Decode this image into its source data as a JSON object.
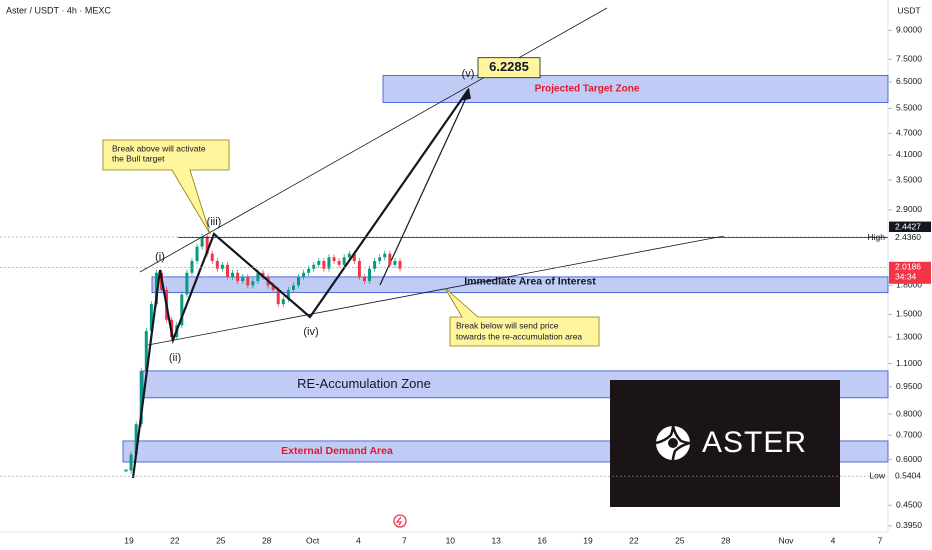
{
  "chart_data": {
    "type": "candlestick",
    "title": "Aster / USDT · 4h · MEXC",
    "y_unit": "USDT",
    "yscale": "log",
    "ylim": [
      0.38,
      10.9
    ],
    "yticks": [
      {
        "value": 9,
        "label": "9.0000"
      },
      {
        "value": 7.5,
        "label": "7.5000"
      },
      {
        "value": 6.5,
        "label": "6.5000"
      },
      {
        "value": 5.5,
        "label": "5.5000"
      },
      {
        "value": 4.7,
        "label": "4.7000"
      },
      {
        "value": 4.1,
        "label": "4.1000"
      },
      {
        "value": 3.5,
        "label": "3.5000"
      },
      {
        "value": 2.9,
        "label": "2.9000"
      },
      {
        "value": 1.8,
        "label": "1.8000"
      },
      {
        "value": 1.5,
        "label": "1.5000"
      },
      {
        "value": 1.3,
        "label": "1.3000"
      },
      {
        "value": 1.1,
        "label": "1.1000"
      },
      {
        "value": 0.95,
        "label": "0.9500"
      },
      {
        "value": 0.8,
        "label": "0.8000"
      },
      {
        "value": 0.7,
        "label": "0.7000"
      },
      {
        "value": 0.6,
        "label": "0.6000"
      },
      {
        "value": 0.45,
        "label": "0.4500"
      },
      {
        "value": 0.395,
        "label": "0.3950"
      }
    ],
    "x_labels": [
      "19",
      "22",
      "25",
      "28",
      "Oct",
      "4",
      "7",
      "10",
      "13",
      "16",
      "19",
      "22",
      "25",
      "28",
      "Nov",
      "4",
      "7"
    ],
    "up_color": "#089981",
    "down_color": "#f23645",
    "values": [
      0.56,
      0.62,
      0.75,
      1.05,
      1.35,
      1.6,
      1.95,
      1.75,
      1.45,
      1.3,
      1.4,
      1.7,
      1.95,
      2.1,
      2.3,
      2.45,
      2.2,
      2.1,
      2.0,
      2.05,
      1.9,
      1.95,
      1.85,
      1.9,
      1.8,
      1.85,
      1.95,
      1.9,
      1.8,
      1.75,
      1.6,
      1.65,
      1.75,
      1.8,
      1.9,
      1.95,
      2.0,
      2.05,
      2.1,
      2.0,
      2.15,
      2.1,
      2.05,
      2.15,
      2.2,
      2.1,
      1.9,
      1.85,
      2.0,
      2.1,
      2.15,
      2.2,
      2.05,
      2.1,
      2.0
    ],
    "markers": [
      {
        "value": 2.4427,
        "label": "2.4427",
        "color": "#131722"
      },
      {
        "value": 2.436,
        "label": "2.4360",
        "note": "High",
        "color": "#ffffff"
      },
      {
        "value": 2.0186,
        "label": "2.0186",
        "note": "34:34",
        "color": "#f23645"
      },
      {
        "value": 0.5404,
        "label": "0.5404",
        "note": "Low",
        "color": "#ffffff"
      }
    ],
    "zones": [
      {
        "label": "Projected Target Zone",
        "top": 6.77,
        "bottom": 5.71,
        "label_color": "#e0182b"
      },
      {
        "label": "Immediate Area of Interest",
        "top": 1.9,
        "bottom": 1.72,
        "label_color": "#131722"
      },
      {
        "label": "RE-Accumulation Zone",
        "top": 1.05,
        "bottom": 0.886,
        "label_color": "#131722"
      },
      {
        "label": "External Demand Area",
        "top": 0.675,
        "bottom": 0.591,
        "label_color": "#e0182b"
      }
    ],
    "target": {
      "value": 6.2285
    },
    "wave_labels": [
      "(i)",
      "(ii)",
      "(iii)",
      "(iv)",
      "(v)"
    ],
    "callouts": [
      [
        "Break above will activate",
        "the Bull target"
      ],
      [
        "Break below will send price",
        "towards the re-accumulation area"
      ]
    ],
    "logo_text": "ASTER"
  }
}
